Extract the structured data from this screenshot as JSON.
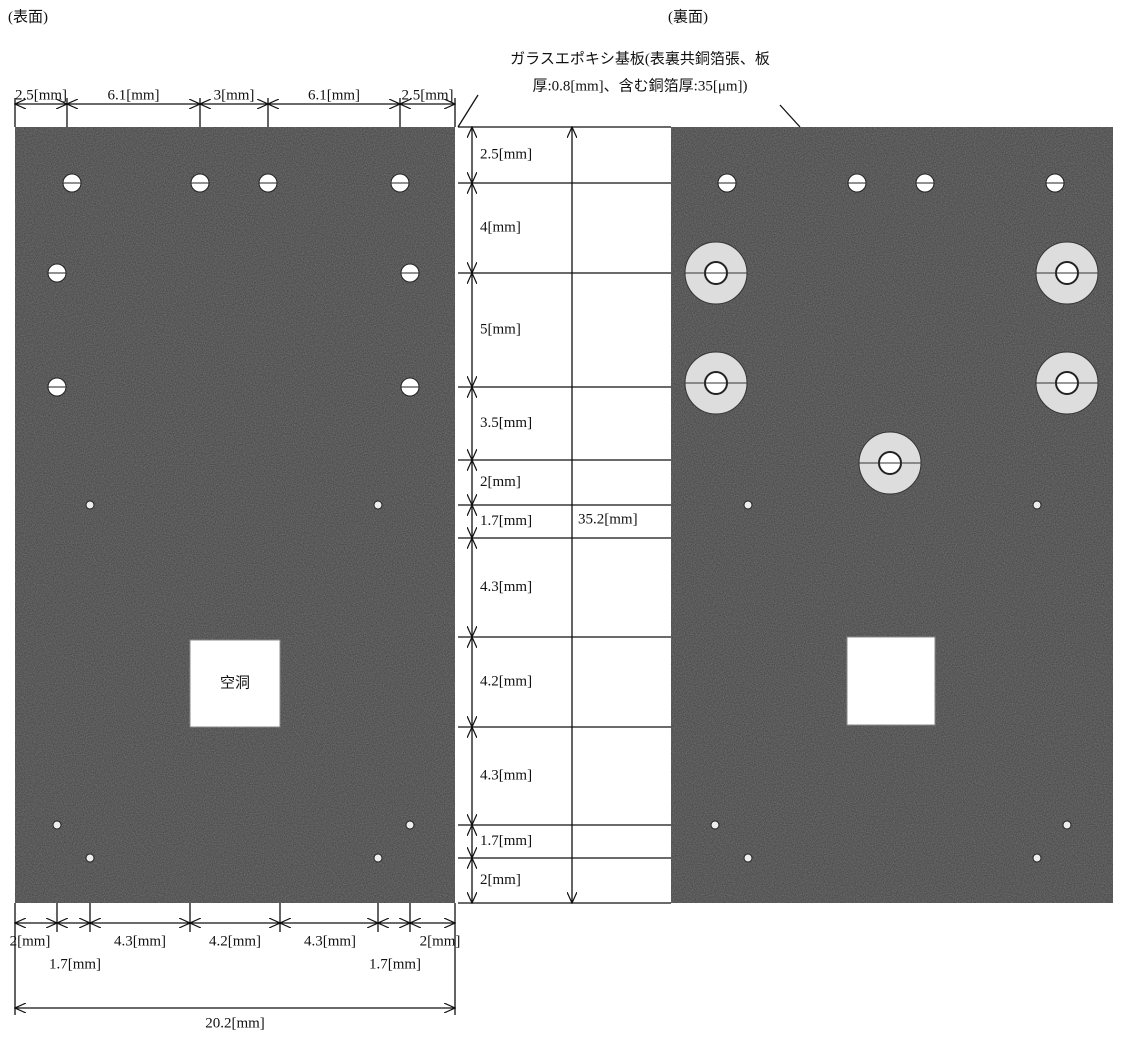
{
  "headings": {
    "front": "(表面)",
    "back": "(裏面)"
  },
  "substrate_note": [
    "ガラスエポキシ基板(表裏共銅箔張、板",
    "厚:0.8[mm]、含む銅箔厚:35[μm])"
  ],
  "top_dims": [
    "2.5[mm]",
    "6.1[mm]",
    "3[mm]",
    "6.1[mm]",
    "2.5[mm]"
  ],
  "side_dims": [
    "2.5[mm]",
    "4[mm]",
    "5[mm]",
    "3.5[mm]",
    "2[mm]",
    "1.7[mm]",
    "4.3[mm]",
    "4.2[mm]",
    "4.3[mm]",
    "1.7[mm]",
    "2[mm]"
  ],
  "total_height": "35.2[mm]",
  "bottom_dims_upper": [
    "2[mm]",
    "4.3[mm]",
    "4.2[mm]",
    "4.3[mm]",
    "2[mm]"
  ],
  "bottom_dims_lower": [
    "1.7[mm]",
    "1.7[mm]"
  ],
  "total_width": "20.2[mm]",
  "cavity_label": "空洞"
}
